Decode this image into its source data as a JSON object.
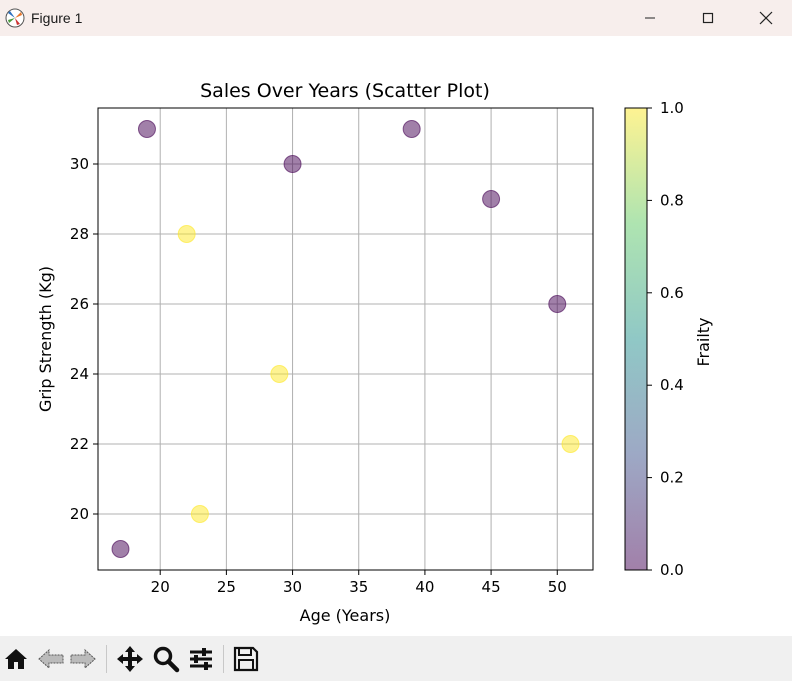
{
  "window": {
    "title": "Figure 1",
    "icon": "matplotlib-logo-icon",
    "controls": [
      "minimize-icon",
      "maximize-icon",
      "close-icon"
    ]
  },
  "toolbar": {
    "buttons": [
      "home-icon",
      "back-arrow-icon",
      "forward-arrow-icon",
      "pan-move-icon",
      "zoom-magnifier-icon",
      "configure-subplots-icon",
      "save-disk-icon"
    ]
  },
  "chart_data": {
    "type": "scatter",
    "title": "Sales Over Years (Scatter Plot)",
    "xlabel": "Age (Years)",
    "ylabel": "Grip Strength (Kg)",
    "xlim": [
      15.3,
      52.7
    ],
    "ylim": [
      18.4,
      31.6
    ],
    "x_ticks": [
      20,
      25,
      30,
      35,
      40,
      45,
      50
    ],
    "y_ticks": [
      20,
      22,
      24,
      26,
      28,
      30
    ],
    "grid": true,
    "points": [
      {
        "x": 17,
        "y": 19,
        "frailty": 0
      },
      {
        "x": 19,
        "y": 31,
        "frailty": 0
      },
      {
        "x": 22,
        "y": 28,
        "frailty": 1
      },
      {
        "x": 23,
        "y": 20,
        "frailty": 1
      },
      {
        "x": 29,
        "y": 24,
        "frailty": 1
      },
      {
        "x": 30,
        "y": 30,
        "frailty": 0
      },
      {
        "x": 39,
        "y": 31,
        "frailty": 0
      },
      {
        "x": 45,
        "y": 29,
        "frailty": 0
      },
      {
        "x": 50,
        "y": 26,
        "frailty": 0
      },
      {
        "x": 51,
        "y": 22,
        "frailty": 1
      }
    ],
    "marker_alpha": 0.5,
    "colormap": "viridis",
    "colorbar": {
      "label": "Frailty",
      "range": [
        0.0,
        1.0
      ],
      "ticks": [
        "0.0",
        "0.2",
        "0.4",
        "0.6",
        "0.8",
        "1.0"
      ]
    }
  }
}
